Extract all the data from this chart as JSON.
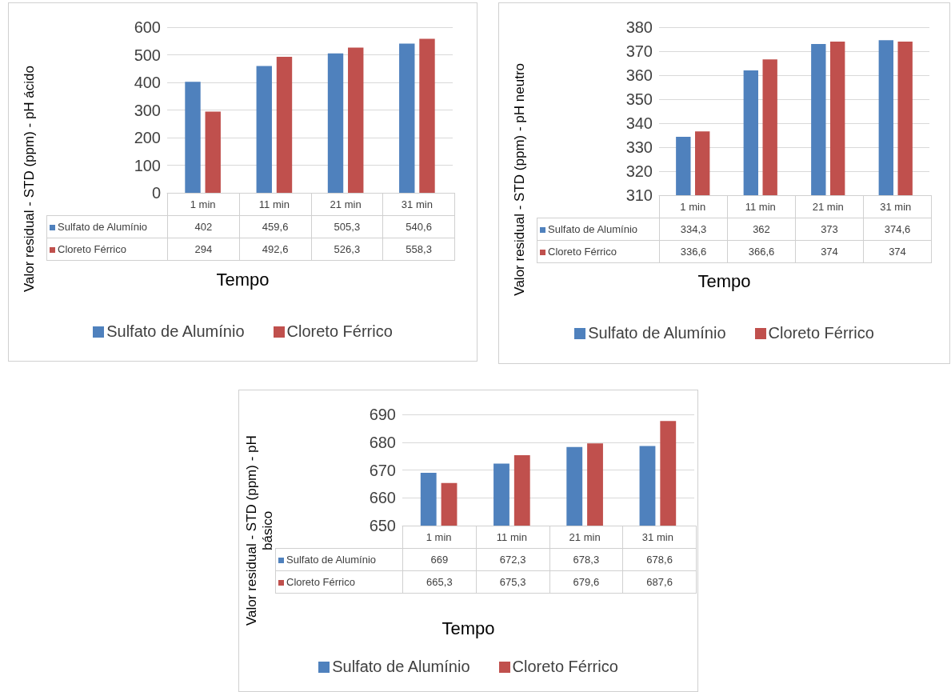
{
  "chart_data": [
    {
      "type": "bar",
      "xlabel": "Tempo",
      "ylabel": "Valor residual - STD (ppm) - pH ácido",
      "categories": [
        "1 min",
        "11 min",
        "21 min",
        "31 min"
      ],
      "ylim": [
        0,
        600
      ],
      "yticks": [
        0,
        100,
        200,
        300,
        400,
        500,
        600
      ],
      "grid": "y",
      "legend": "bottom",
      "series": [
        {
          "name": "Sulfato de Alumínio",
          "color": "#4f81bd",
          "values": [
            402,
            459.6,
            505.3,
            540.6
          ],
          "value_labels": [
            "402",
            "459,6",
            "505,3",
            "540,6"
          ]
        },
        {
          "name": "Cloreto Férrico",
          "color": "#c0504d",
          "values": [
            294,
            492.6,
            526.3,
            558.3
          ],
          "value_labels": [
            "294",
            "492,6",
            "526,3",
            "558,3"
          ]
        }
      ]
    },
    {
      "type": "bar",
      "xlabel": "Tempo",
      "ylabel": "Valor residual - STD (ppm) - pH neutro",
      "categories": [
        "1 min",
        "11 min",
        "21 min",
        "31 min"
      ],
      "ylim": [
        310,
        380
      ],
      "yticks": [
        310,
        320,
        330,
        340,
        350,
        360,
        370,
        380
      ],
      "grid": "y",
      "legend": "bottom",
      "series": [
        {
          "name": "Sulfato de Alumínio",
          "color": "#4f81bd",
          "values": [
            334.3,
            362,
            373,
            374.6
          ],
          "value_labels": [
            "334,3",
            "362",
            "373",
            "374,6"
          ]
        },
        {
          "name": "Cloreto Férrico",
          "color": "#c0504d",
          "values": [
            336.6,
            366.6,
            374,
            374
          ],
          "value_labels": [
            "336,6",
            "366,6",
            "374",
            "374"
          ]
        }
      ]
    },
    {
      "type": "bar",
      "xlabel": "Tempo",
      "ylabel": "Valor residual - STD (ppm) - pH básico",
      "categories": [
        "1 min",
        "11 min",
        "21 min",
        "31 min"
      ],
      "ylim": [
        650,
        690
      ],
      "yticks": [
        650,
        660,
        670,
        680,
        690
      ],
      "grid": "y",
      "legend": "bottom",
      "series": [
        {
          "name": "Sulfato de Alumínio",
          "color": "#4f81bd",
          "values": [
            669,
            672.3,
            678.3,
            678.6
          ],
          "value_labels": [
            "669",
            "672,3",
            "678,3",
            "678,6"
          ]
        },
        {
          "name": "Cloreto Férrico",
          "color": "#c0504d",
          "values": [
            665.3,
            675.3,
            679.6,
            687.6
          ],
          "value_labels": [
            "665,3",
            "675,3",
            "679,6",
            "687,6"
          ]
        }
      ]
    }
  ]
}
